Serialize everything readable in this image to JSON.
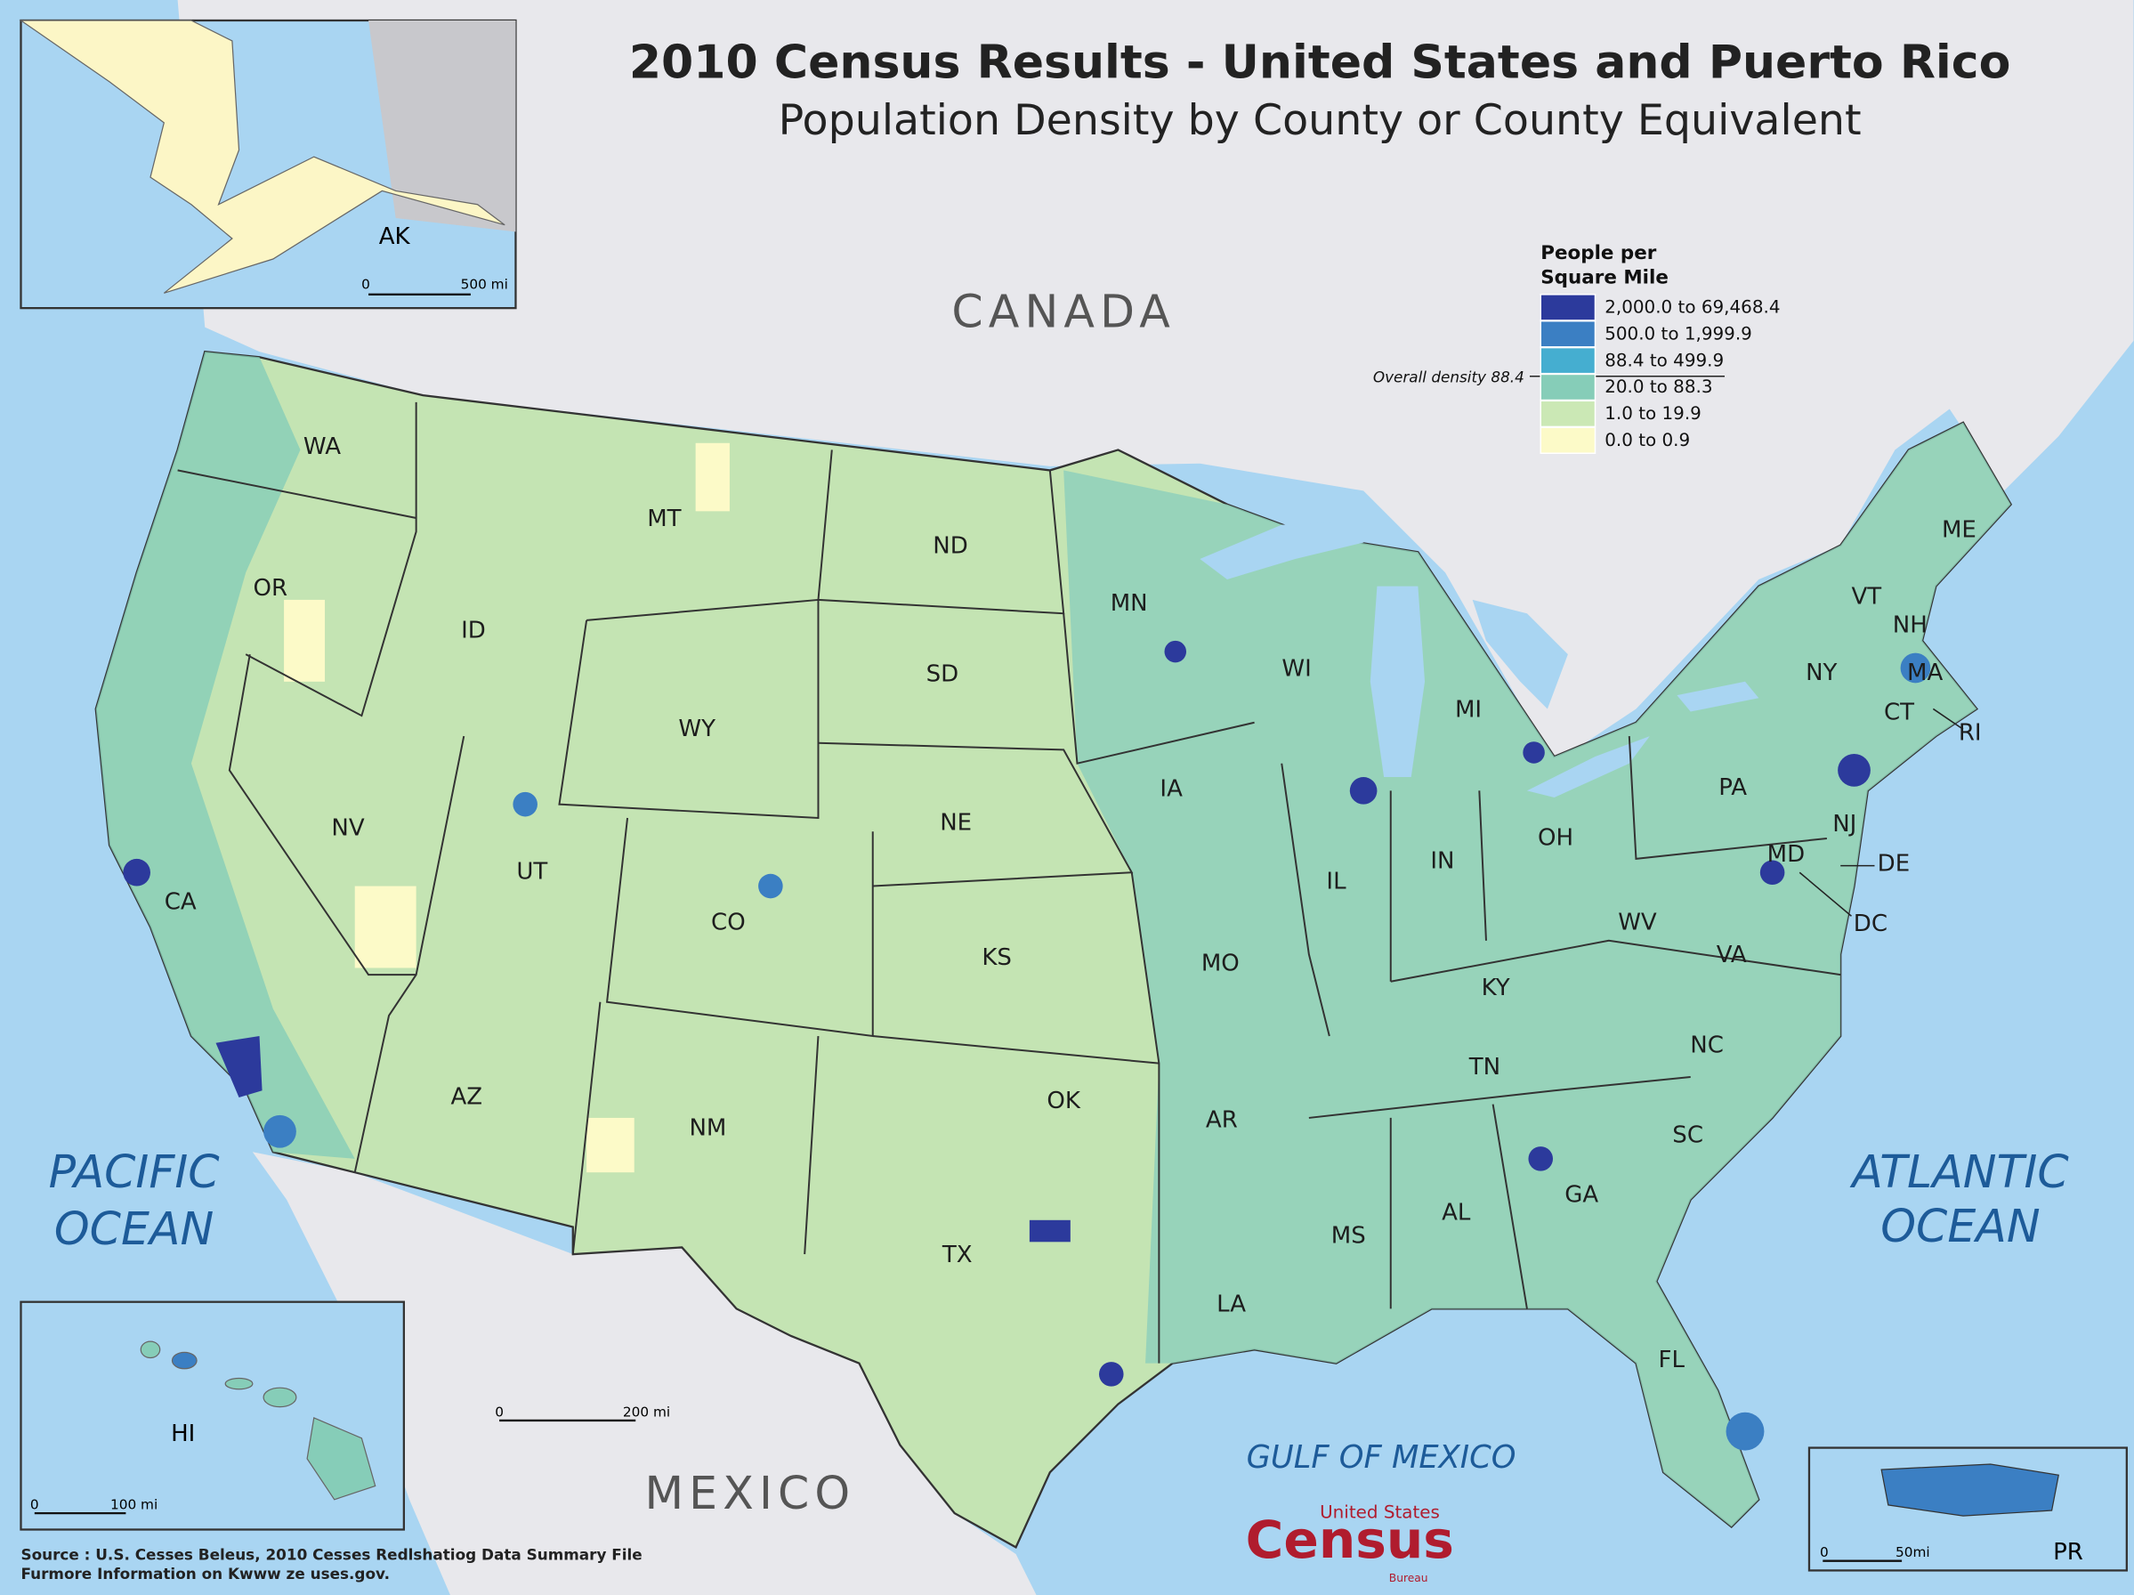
{
  "title": "2010 Census Results - United States and Puerto Rico",
  "subtitle": "Population Density by County or County Equivalent",
  "legend": {
    "title_lines": [
      "People per",
      "Square Mile"
    ],
    "items": [
      {
        "label": "2,000.0 to 69,468.4",
        "color": "#2c3a9c"
      },
      {
        "label": "500.0 to 1,999.9",
        "color": "#3b7fc3"
      },
      {
        "label": "88.4 to 499.9",
        "color": "#45aed0"
      },
      {
        "label": "20.0 to 88.3",
        "color": "#86cdb8"
      },
      {
        "label": "1.0 to 19.9",
        "color": "#cbe8b5"
      },
      {
        "label": "0.0 to 0.9",
        "color": "#fcfac8"
      }
    ],
    "overall_density": "Overall density 88.4"
  },
  "countries": [
    "CANADA",
    "MEXICO"
  ],
  "water": [
    {
      "lines": [
        "PACIFIC",
        "OCEAN"
      ]
    },
    {
      "lines": [
        "ATLANTIC",
        "OCEAN"
      ]
    },
    {
      "lines": [
        "GULF OF MEXICO"
      ]
    }
  ],
  "states": [
    "WA",
    "OR",
    "CA",
    "ID",
    "NV",
    "UT",
    "AZ",
    "MT",
    "WY",
    "CO",
    "NM",
    "ND",
    "SD",
    "NE",
    "KS",
    "OK",
    "TX",
    "MN",
    "IA",
    "MO",
    "AR",
    "LA",
    "WI",
    "IL",
    "MS",
    "MI",
    "IN",
    "KY",
    "TN",
    "AL",
    "OH",
    "GA",
    "FL",
    "SC",
    "NC",
    "VA",
    "WV",
    "PA",
    "NY",
    "VT",
    "NH",
    "ME",
    "MA",
    "CT",
    "RI",
    "NJ",
    "DE",
    "MD",
    "DC"
  ],
  "insets": [
    {
      "label": "AK",
      "scale": [
        "0",
        "500 mi"
      ]
    },
    {
      "label": "HI",
      "scale": [
        "0",
        "100 mi"
      ]
    },
    {
      "label": "PR",
      "scale": [
        "0",
        "50mi"
      ]
    }
  ],
  "main_scale": [
    "0",
    "200 mi"
  ],
  "source": [
    "Source : U.S. Cesses Beleus, 2010 Cesses Redlshatiog Data Summary File",
    "Furmore Information on Kwww ze uses.gov."
  ],
  "logo": {
    "top": "United States",
    "main": "Census",
    "bottom": "Bureau"
  }
}
